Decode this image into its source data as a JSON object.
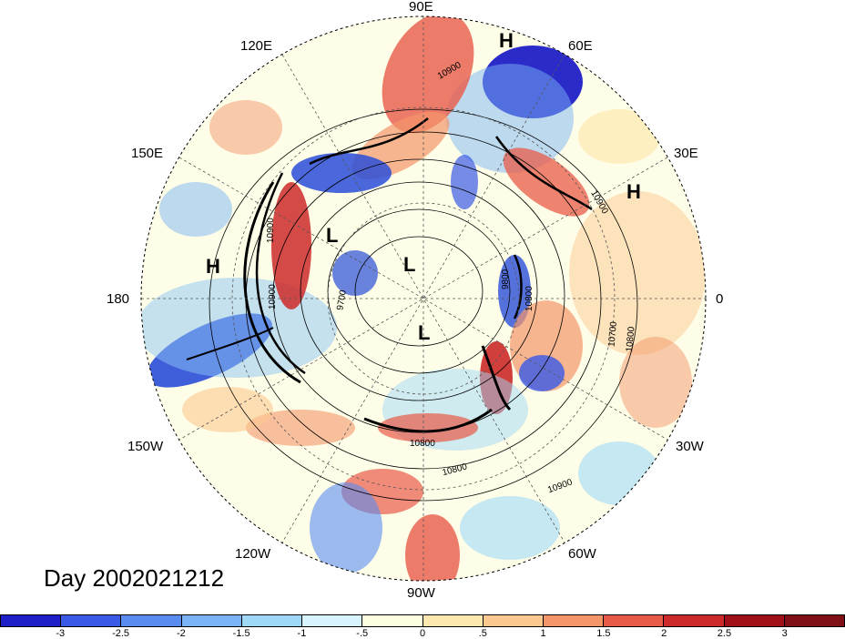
{
  "day_label": "Day 2002021212",
  "longitude_labels": [
    "90E",
    "60E",
    "30E",
    "0",
    "30W",
    "60W",
    "90W",
    "120W",
    "150W",
    "180",
    "150E",
    "120E"
  ],
  "pressure_centers": [
    "H",
    "H",
    "H",
    "L",
    "L",
    "L"
  ],
  "contour_labels": [
    "10900",
    "10900",
    "10900",
    "10900",
    "9700",
    "9800",
    "10800",
    "10700",
    "10800",
    "10800",
    "10900",
    "10800"
  ],
  "colorbar": {
    "ticks": [
      "-3",
      "-2.5",
      "-2",
      "-1.5",
      "-1",
      "-.5",
      "0",
      ".5",
      "1",
      "1.5",
      "2",
      "2.5",
      "3"
    ],
    "colors": [
      "#2020c8",
      "#3a5ae6",
      "#5a8cf0",
      "#7ab4f4",
      "#a0d8f8",
      "#d8f4fc",
      "#fefee0",
      "#fde8b0",
      "#fbc890",
      "#f4956a",
      "#e85a48",
      "#cc2a2a",
      "#a01018",
      "#801018"
    ]
  }
}
